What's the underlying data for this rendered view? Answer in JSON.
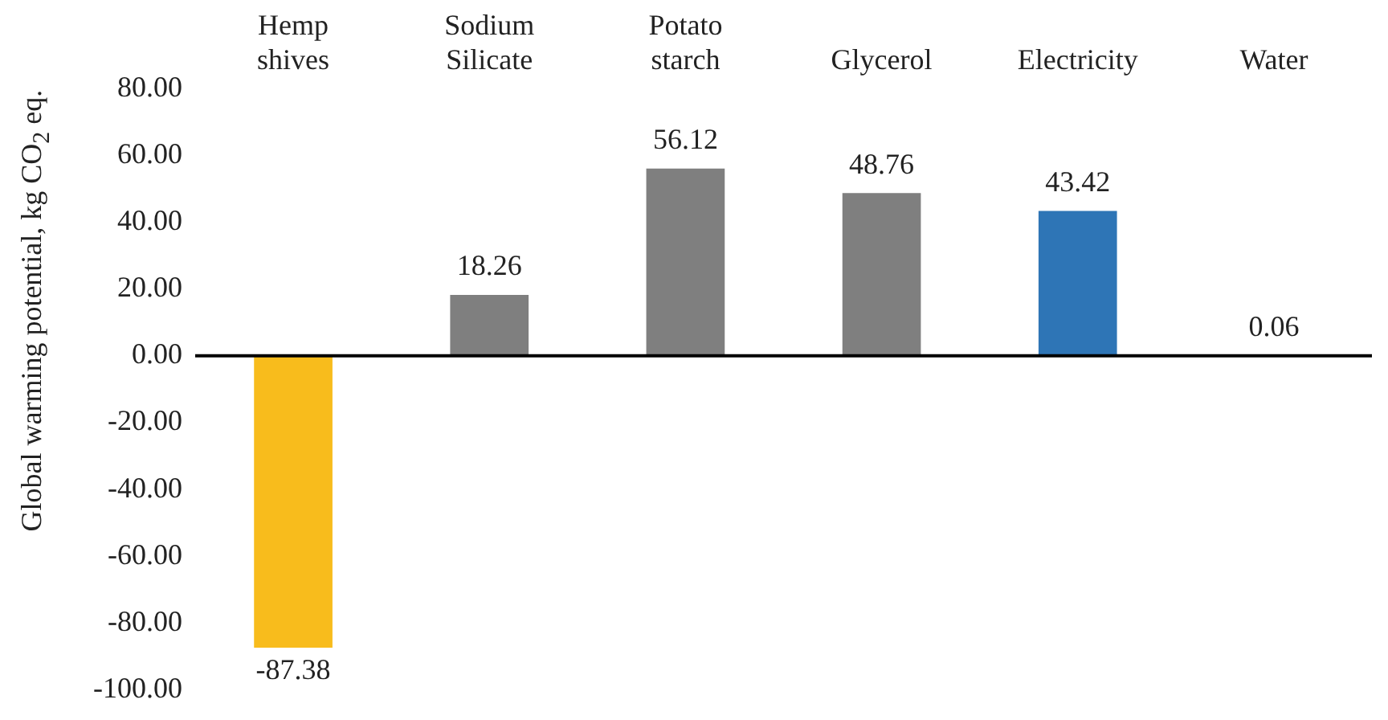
{
  "chart_data": {
    "type": "bar",
    "categories": [
      "Hemp shives",
      "Sodium Silicate",
      "Potato starch",
      "Glycerol",
      "Electricity",
      "Water"
    ],
    "values": [
      -87.38,
      18.26,
      56.12,
      48.76,
      43.42,
      0.06
    ],
    "colors": [
      "#f8bc1c",
      "#7f7f7f",
      "#7f7f7f",
      "#7f7f7f",
      "#2e75b6",
      "#7f7f7f"
    ],
    "ylabel": "Global warming potential, kg CO$_{2}$ eq.",
    "ylim": [
      -100,
      80
    ],
    "yticks": [
      {
        "value": -100,
        "label": "-100.00"
      },
      {
        "value": -80,
        "label": "-80.00"
      },
      {
        "value": -60,
        "label": "-60.00"
      },
      {
        "value": -40,
        "label": "-40.00"
      },
      {
        "value": -20,
        "label": "-20.00"
      },
      {
        "value": 0,
        "label": "0.00"
      },
      {
        "value": 20,
        "label": "20.00"
      },
      {
        "value": 40,
        "label": "40.00"
      },
      {
        "value": 60,
        "label": "60.00"
      },
      {
        "value": 80,
        "label": "80.00"
      }
    ],
    "ref_lines": [
      {
        "axis": "y",
        "value": 0,
        "color": "#000000"
      }
    ],
    "grid": false,
    "legend": false,
    "data_labels": true
  }
}
